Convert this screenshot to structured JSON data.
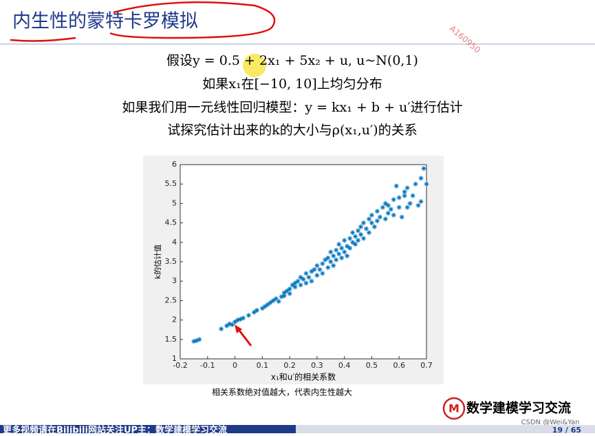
{
  "slide": {
    "title": "内生性的蒙特卡罗模拟",
    "watermark": "A160950",
    "lines": [
      "假设y = 0.5 + 2x₁ + 5x₂ + u, u~N(0,1)",
      "如果x₁在[−10, 10]上均匀分布",
      "如果我们用一元线性回归模型：y = kx₁ + b + u′进行估计",
      "试探究估计出来的k的大小与ρ(x₁,u′)的关系"
    ],
    "caption": "相关系数绝对值越大，代表内生性越大",
    "logo_mark": "M",
    "logo_text": "数学建模学习交流",
    "footer": "更多视频请在Bilibili网站关注UP主：数学建模学习交流",
    "page": "19 / 65",
    "credit": "CSDN @Wei&Yan"
  },
  "chart_data": {
    "type": "scatter",
    "xlabel": "x₁和u′的相关系数",
    "ylabel": "k的估计值",
    "color": "#0072bd",
    "xlim": [
      -0.2,
      0.7
    ],
    "xticks": [
      -0.2,
      -0.1,
      0,
      0.1,
      0.2,
      0.3,
      0.4,
      0.5,
      0.6,
      0.7
    ],
    "ylim": [
      1,
      6
    ],
    "yticks": [
      1,
      1.5,
      2,
      2.5,
      3,
      3.5,
      4,
      4.5,
      5,
      5.5,
      6
    ],
    "x": [
      -0.15,
      -0.14,
      -0.13,
      -0.05,
      -0.03,
      -0.02,
      -0.01,
      0,
      0.01,
      0.02,
      0.03,
      0.05,
      0.07,
      0.08,
      0.1,
      0.11,
      0.12,
      0.13,
      0.14,
      0.15,
      0.16,
      0.17,
      0.18,
      0.18,
      0.19,
      0.2,
      0.2,
      0.21,
      0.22,
      0.22,
      0.23,
      0.24,
      0.24,
      0.25,
      0.26,
      0.26,
      0.27,
      0.28,
      0.28,
      0.29,
      0.3,
      0.3,
      0.31,
      0.32,
      0.32,
      0.33,
      0.34,
      0.34,
      0.35,
      0.35,
      0.36,
      0.36,
      0.37,
      0.37,
      0.38,
      0.38,
      0.39,
      0.39,
      0.4,
      0.4,
      0.41,
      0.41,
      0.42,
      0.42,
      0.43,
      0.43,
      0.44,
      0.44,
      0.45,
      0.45,
      0.46,
      0.46,
      0.47,
      0.47,
      0.48,
      0.49,
      0.49,
      0.5,
      0.5,
      0.51,
      0.52,
      0.52,
      0.53,
      0.54,
      0.55,
      0.55,
      0.56,
      0.57,
      0.58,
      0.58,
      0.6,
      0.6,
      0.61,
      0.62,
      0.63,
      0.63,
      0.64,
      0.65,
      0.66,
      0.67,
      0.68,
      0.68,
      0.69,
      0.7,
      0.62,
      0.59,
      0.56
    ],
    "y": [
      1.45,
      1.47,
      1.5,
      1.77,
      1.85,
      1.9,
      1.88,
      1.95,
      2.0,
      2.02,
      2.05,
      2.12,
      2.2,
      2.25,
      2.3,
      2.35,
      2.4,
      2.45,
      2.5,
      2.55,
      2.48,
      2.6,
      2.7,
      2.62,
      2.75,
      2.8,
      2.68,
      2.9,
      2.85,
      2.95,
      3.0,
      2.9,
      3.1,
      3.05,
      2.95,
      3.2,
      3.1,
      3.25,
      3.0,
      3.3,
      3.15,
      3.4,
      3.3,
      3.45,
      3.2,
      3.55,
      3.35,
      3.6,
      3.5,
      3.75,
      3.4,
      3.65,
      3.8,
      3.55,
      3.7,
      3.95,
      3.6,
      3.85,
      3.75,
      4.05,
      3.9,
      3.65,
      4.1,
      3.85,
      4.0,
      4.25,
      3.95,
      4.15,
      4.3,
      4.05,
      4.4,
      4.2,
      4.5,
      4.1,
      4.35,
      4.6,
      4.25,
      4.5,
      4.7,
      4.4,
      4.8,
      4.55,
      4.65,
      4.9,
      4.6,
      5.0,
      4.75,
      4.85,
      5.1,
      4.7,
      4.9,
      5.15,
      4.65,
      5.3,
      4.9,
      5.4,
      5.0,
      5.2,
      5.5,
      4.95,
      5.05,
      5.65,
      5.9,
      5.5,
      5.2,
      5.45,
      4.95
    ]
  }
}
